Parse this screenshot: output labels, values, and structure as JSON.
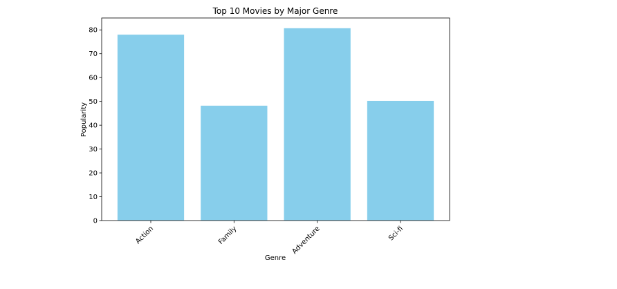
{
  "chart_data": {
    "type": "bar",
    "title": "Top 10 Movies by Major Genre",
    "xlabel": "Genre",
    "ylabel": "Popularity",
    "categories": [
      "Action",
      "Family",
      "Adventure",
      "Sci-fi"
    ],
    "values": [
      78,
      48.2,
      80.7,
      50.2
    ],
    "ylim": [
      0,
      85
    ],
    "yticks": [
      0,
      10,
      20,
      30,
      40,
      50,
      60,
      70,
      80
    ],
    "bar_color": "#87CEEB",
    "grid": false,
    "x_tick_rotation_deg": 45
  }
}
